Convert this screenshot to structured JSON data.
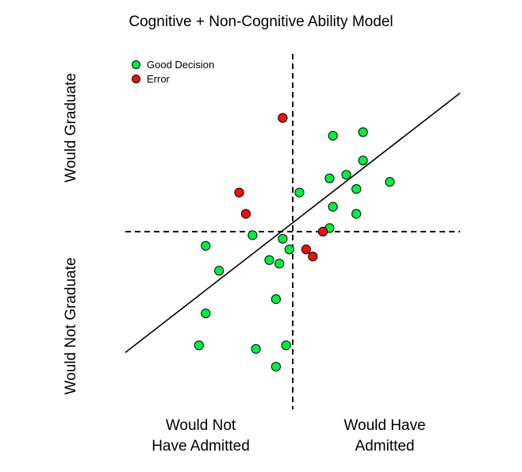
{
  "chart_data": {
    "type": "scatter",
    "title": "Cognitive + Non-Cognitive Ability Model",
    "y_labels": {
      "top": "Would Graduate",
      "bottom": "Would Not Graduate"
    },
    "x_labels": {
      "left": [
        "Would Not",
        "Have Admitted"
      ],
      "right": [
        "Would Have",
        "Admitted"
      ]
    },
    "xlim": [
      0,
      100
    ],
    "ylim": [
      0,
      100
    ],
    "legend": {
      "position": "top-left",
      "entries": [
        {
          "name": "Good Decision",
          "color": "#00ee44"
        },
        {
          "name": "Error",
          "color": "#ee1111"
        }
      ]
    },
    "thresholds": {
      "x": 50,
      "y": 50
    },
    "fit_line": {
      "x1": 0,
      "y1": 16,
      "x2": 100,
      "y2": 89
    },
    "series": [
      {
        "name": "Good Decision",
        "color": "#00ee44",
        "points": [
          {
            "x": 62,
            "y": 77
          },
          {
            "x": 71,
            "y": 78
          },
          {
            "x": 71,
            "y": 70
          },
          {
            "x": 66,
            "y": 66
          },
          {
            "x": 61,
            "y": 65
          },
          {
            "x": 69,
            "y": 62
          },
          {
            "x": 52,
            "y": 61
          },
          {
            "x": 79,
            "y": 64
          },
          {
            "x": 62,
            "y": 57
          },
          {
            "x": 69,
            "y": 55
          },
          {
            "x": 61,
            "y": 51
          },
          {
            "x": 38,
            "y": 49
          },
          {
            "x": 47,
            "y": 48
          },
          {
            "x": 49,
            "y": 45
          },
          {
            "x": 24,
            "y": 46
          },
          {
            "x": 43,
            "y": 42
          },
          {
            "x": 46,
            "y": 41
          },
          {
            "x": 28,
            "y": 39
          },
          {
            "x": 45,
            "y": 31
          },
          {
            "x": 24,
            "y": 27
          },
          {
            "x": 22,
            "y": 18
          },
          {
            "x": 39,
            "y": 17
          },
          {
            "x": 48,
            "y": 18
          },
          {
            "x": 45,
            "y": 12
          }
        ]
      },
      {
        "name": "Error",
        "color": "#ee1111",
        "points": [
          {
            "x": 47,
            "y": 82
          },
          {
            "x": 34,
            "y": 61
          },
          {
            "x": 36,
            "y": 55
          },
          {
            "x": 59,
            "y": 50
          },
          {
            "x": 54,
            "y": 45
          },
          {
            "x": 56,
            "y": 43
          }
        ]
      }
    ]
  }
}
